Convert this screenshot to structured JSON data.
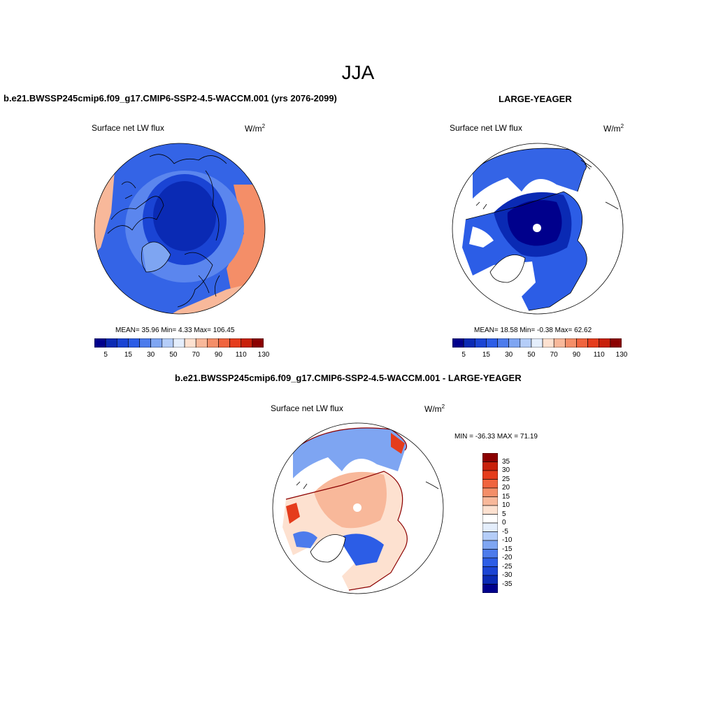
{
  "title": "JJA",
  "panels": [
    {
      "case_title": "b.e21.BWSSP245cmip6.f09_g17.CMIP6-SSP2-4.5-WACCM.001 (yrs 2076-2099)",
      "variable": "Surface net LW flux",
      "units_base": "W/m",
      "units_exp": "2",
      "stats": "MEAN=  35.96  Min=   4.33  Max= 106.45"
    },
    {
      "case_title": "LARGE-YEAGER",
      "variable": "Surface net LW flux",
      "units_base": "W/m",
      "units_exp": "2",
      "stats": "MEAN=  18.58  Min=  -0.38  Max=  62.62"
    },
    {
      "case_title": "b.e21.BWSSP245cmip6.f09_g17.CMIP6-SSP2-4.5-WACCM.001 - LARGE-YEAGER",
      "variable": "Surface net LW flux",
      "units_base": "W/m",
      "units_exp": "2",
      "stats": "MIN = -36.33 MAX =  71.19"
    }
  ],
  "colorbar_h": {
    "ticks": [
      "5",
      "15",
      "30",
      "50",
      "70",
      "90",
      "110",
      "130"
    ],
    "colors": [
      "#00008c",
      "#0a2ab4",
      "#1a44d4",
      "#2c5de6",
      "#4c7bec",
      "#7ea5f2",
      "#b4cdf8",
      "#e4eefc",
      "#fde1d0",
      "#f8b89a",
      "#f48e68",
      "#f0643e",
      "#e53c1c",
      "#c8200a",
      "#8c0000"
    ]
  },
  "colorbar_v": {
    "ticks": [
      "35",
      "30",
      "25",
      "20",
      "15",
      "10",
      "5",
      "0",
      "-5",
      "-10",
      "-15",
      "-20",
      "-25",
      "-30",
      "-35"
    ],
    "colors": [
      "#8c0000",
      "#c8200a",
      "#e53c1c",
      "#f0643e",
      "#f48e68",
      "#f8b89a",
      "#fde1d0",
      "#ffffff",
      "#e4eefc",
      "#b4cdf8",
      "#7ea5f2",
      "#4c7bec",
      "#2c5de6",
      "#1a44d4",
      "#0a2ab4",
      "#00008c"
    ]
  },
  "map_fields": {
    "panel1": {
      "outer": "#3464e6",
      "ring": "#5b86ee",
      "inner": "#1a44d4",
      "center": "#0a2ab4",
      "left_edge": "#f8b89a",
      "right_edge": "#f48e68"
    },
    "panel2": {
      "outer": "#3464e6",
      "ring": "#2c5de6",
      "inner": "#0a2ab4",
      "center": "#00008c"
    },
    "panel3": {
      "outer": "#7ea5f2",
      "ring": "#fde1d0",
      "inner": "#f8b89a",
      "center": "#fde1d0"
    }
  }
}
